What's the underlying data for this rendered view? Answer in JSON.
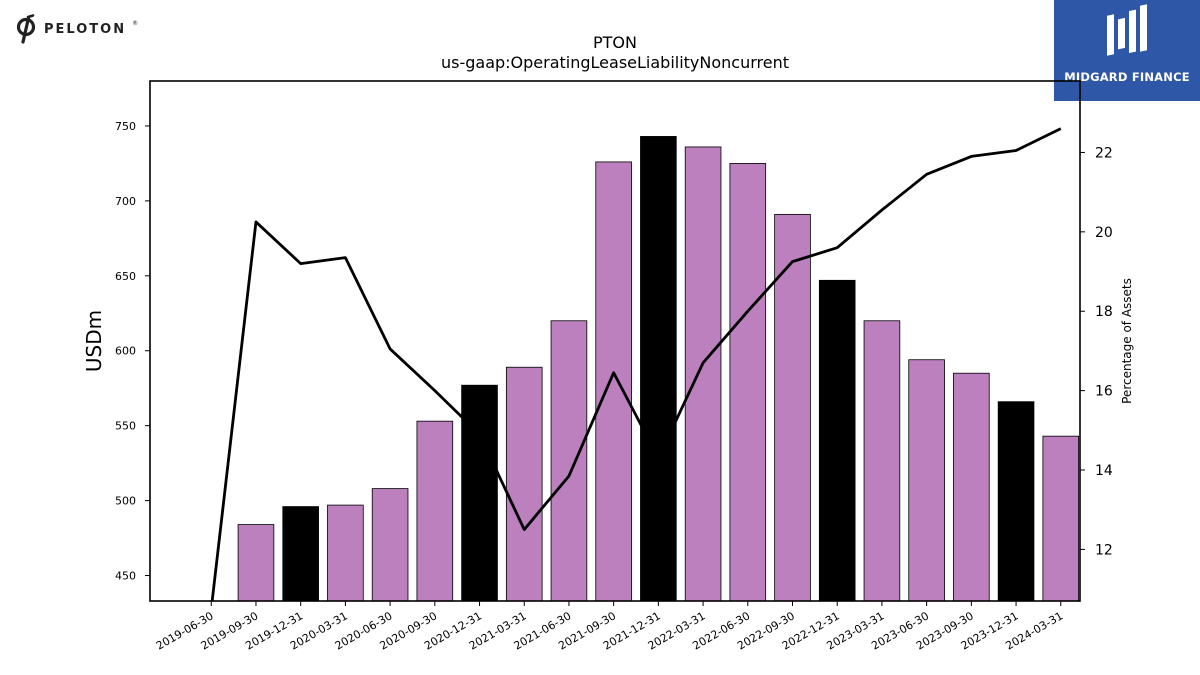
{
  "brand": {
    "name": "PELOTON",
    "reg": "®"
  },
  "sponsor": {
    "name": "MIDGARD FINANCE"
  },
  "chart_data": {
    "type": "bar",
    "title": "PTON",
    "subtitle": "us-gaap:OperatingLeaseLiabilityNoncurrent",
    "ylabel": "USDm",
    "y2label": "Percentage of Assets",
    "ylim": [
      433,
      780
    ],
    "y2lim": [
      10.7,
      23.8
    ],
    "yticks": [
      450,
      500,
      550,
      600,
      650,
      700,
      750
    ],
    "y2ticks": [
      12,
      14,
      16,
      18,
      20,
      22
    ],
    "categories": [
      "2019-06-30",
      "2019-09-30",
      "2019-12-31",
      "2020-03-31",
      "2020-06-30",
      "2020-09-30",
      "2020-12-31",
      "2021-03-31",
      "2021-06-30",
      "2021-09-30",
      "2021-12-31",
      "2022-03-31",
      "2022-06-30",
      "2022-09-30",
      "2022-12-31",
      "2023-03-31",
      "2023-06-30",
      "2023-09-30",
      "2023-12-31",
      "2024-03-31"
    ],
    "values": [
      null,
      484,
      496,
      497,
      508,
      553,
      577,
      589,
      620,
      726,
      743,
      736,
      725,
      691,
      647,
      620,
      594,
      585,
      566,
      543
    ],
    "highlight": [
      false,
      false,
      true,
      false,
      false,
      false,
      true,
      false,
      false,
      false,
      true,
      false,
      false,
      false,
      true,
      false,
      false,
      false,
      true,
      false
    ],
    "line_pct_assets": [
      10.5,
      20.25,
      19.2,
      19.35,
      17.05,
      16.0,
      14.9,
      12.5,
      13.85,
      16.45,
      14.3,
      16.7,
      18.0,
      19.25,
      19.6,
      20.55,
      21.45,
      21.9,
      22.05,
      22.6
    ],
    "colors": {
      "bar": "#bb80bd",
      "highlight": "#000000",
      "line": "#000000"
    }
  }
}
